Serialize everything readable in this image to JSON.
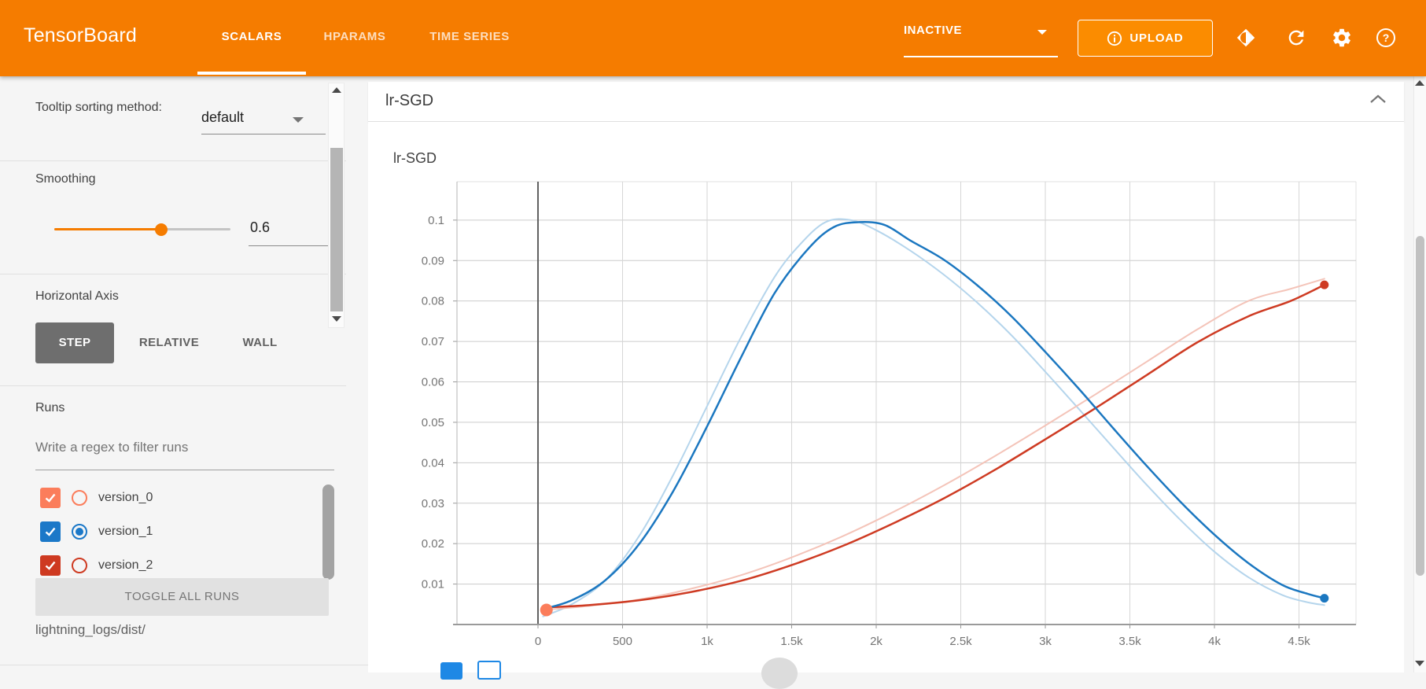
{
  "header": {
    "logo": "TensorBoard",
    "tabs": [
      {
        "label": "SCALARS",
        "active": true
      },
      {
        "label": "HPARAMS",
        "active": false
      },
      {
        "label": "TIME SERIES",
        "active": false
      }
    ],
    "experiment_status": "INACTIVE",
    "upload_label": "UPLOAD",
    "icons": [
      "info-icon",
      "brightness-icon",
      "refresh-icon",
      "settings-icon",
      "help-icon"
    ],
    "accent_color": "#F57C00"
  },
  "sidebar": {
    "tooltip_sorting": {
      "label": "Tooltip sorting method:",
      "value": "default"
    },
    "smoothing": {
      "label": "Smoothing",
      "value": "0.6",
      "fraction": 0.6
    },
    "horizontal_axis": {
      "label": "Horizontal Axis",
      "options": [
        "STEP",
        "RELATIVE",
        "WALL"
      ],
      "active": "STEP"
    },
    "runs": {
      "label": "Runs",
      "filter_placeholder": "Write a regex to filter runs",
      "items": [
        {
          "name": "version_0",
          "color": "#FB7D5B",
          "checked": true,
          "radio_selected": false
        },
        {
          "name": "version_1",
          "color": "#1B78C8",
          "checked": true,
          "radio_selected": true
        },
        {
          "name": "version_2",
          "color": "#CE3A21",
          "checked": true,
          "radio_selected": false
        }
      ],
      "toggle_all_label": "TOGGLE ALL RUNS",
      "path_label": "lightning_logs/dist/"
    }
  },
  "main": {
    "category_title": "lr-SGD",
    "collapse_icon": "chevron-up-icon"
  },
  "chart_data": {
    "type": "line",
    "title": "lr-SGD",
    "xlabel": "",
    "ylabel": "",
    "xlim": [
      -479,
      4837
    ],
    "ylim": [
      0,
      0.1095
    ],
    "grid": true,
    "legend_position": "none",
    "x_ticks": [
      {
        "value": 0,
        "label": "0"
      },
      {
        "value": 500,
        "label": "500"
      },
      {
        "value": 1000,
        "label": "1k"
      },
      {
        "value": 1500,
        "label": "1.5k"
      },
      {
        "value": 2000,
        "label": "2k"
      },
      {
        "value": 2500,
        "label": "2.5k"
      },
      {
        "value": 3000,
        "label": "3k"
      },
      {
        "value": 3500,
        "label": "3.5k"
      },
      {
        "value": 4000,
        "label": "4k"
      },
      {
        "value": 4500,
        "label": "4.5k"
      }
    ],
    "y_ticks": [
      {
        "value": 0.01,
        "label": "0.01"
      },
      {
        "value": 0.02,
        "label": "0.02"
      },
      {
        "value": 0.03,
        "label": "0.03"
      },
      {
        "value": 0.04,
        "label": "0.04"
      },
      {
        "value": 0.05,
        "label": "0.05"
      },
      {
        "value": 0.06,
        "label": "0.06"
      },
      {
        "value": 0.07,
        "label": "0.07"
      },
      {
        "value": 0.08,
        "label": "0.08"
      },
      {
        "value": 0.09,
        "label": "0.09"
      },
      {
        "value": 0.1,
        "label": "0.1"
      }
    ],
    "zero_line_x": 0,
    "series": [
      {
        "name": "version_1 (unsmoothed)",
        "color": "#B5D5EC",
        "width": 2,
        "points": [
          [
            30,
            0.002
          ],
          [
            200,
            0.005
          ],
          [
            400,
            0.011
          ],
          [
            600,
            0.022
          ],
          [
            800,
            0.037
          ],
          [
            1000,
            0.054
          ],
          [
            1200,
            0.071
          ],
          [
            1400,
            0.086
          ],
          [
            1550,
            0.094
          ],
          [
            1700,
            0.0995
          ],
          [
            1850,
            0.1
          ],
          [
            2000,
            0.0975
          ],
          [
            2200,
            0.0925
          ],
          [
            2400,
            0.0865
          ],
          [
            2600,
            0.0795
          ],
          [
            2800,
            0.0715
          ],
          [
            3000,
            0.0625
          ],
          [
            3200,
            0.0532
          ],
          [
            3400,
            0.0438
          ],
          [
            3600,
            0.0345
          ],
          [
            3800,
            0.0258
          ],
          [
            4000,
            0.018
          ],
          [
            4200,
            0.0117
          ],
          [
            4400,
            0.0073
          ],
          [
            4550,
            0.0055
          ],
          [
            4650,
            0.0048
          ]
        ]
      },
      {
        "name": "version_2 (unsmoothed)",
        "color": "#F4C4B9",
        "width": 2,
        "points": [
          [
            30,
            0.0036
          ],
          [
            300,
            0.0046
          ],
          [
            600,
            0.0062
          ],
          [
            900,
            0.0088
          ],
          [
            1200,
            0.0122
          ],
          [
            1500,
            0.0166
          ],
          [
            1800,
            0.0218
          ],
          [
            2100,
            0.0278
          ],
          [
            2400,
            0.0344
          ],
          [
            2700,
            0.0416
          ],
          [
            3000,
            0.0492
          ],
          [
            3300,
            0.057
          ],
          [
            3600,
            0.065
          ],
          [
            3900,
            0.073
          ],
          [
            4200,
            0.08
          ],
          [
            4450,
            0.083
          ],
          [
            4650,
            0.0855
          ]
        ]
      },
      {
        "name": "version_2",
        "color": "#CE3B23",
        "width": 2.5,
        "points": [
          [
            30,
            0.0042
          ],
          [
            300,
            0.0048
          ],
          [
            600,
            0.006
          ],
          [
            900,
            0.008
          ],
          [
            1200,
            0.0108
          ],
          [
            1500,
            0.0147
          ],
          [
            1800,
            0.0194
          ],
          [
            2100,
            0.025
          ],
          [
            2400,
            0.0312
          ],
          [
            2700,
            0.0382
          ],
          [
            3000,
            0.0458
          ],
          [
            3300,
            0.0536
          ],
          [
            3600,
            0.0617
          ],
          [
            3900,
            0.0698
          ],
          [
            4200,
            0.0762
          ],
          [
            4450,
            0.08
          ],
          [
            4650,
            0.084
          ]
        ]
      },
      {
        "name": "version_1",
        "color": "#1B77C0",
        "width": 2.5,
        "points": [
          [
            30,
            0.0038
          ],
          [
            200,
            0.006
          ],
          [
            400,
            0.011
          ],
          [
            600,
            0.02
          ],
          [
            800,
            0.033
          ],
          [
            1000,
            0.049
          ],
          [
            1200,
            0.066
          ],
          [
            1400,
            0.082
          ],
          [
            1600,
            0.093
          ],
          [
            1750,
            0.0983
          ],
          [
            1900,
            0.0995
          ],
          [
            2050,
            0.0988
          ],
          [
            2200,
            0.095
          ],
          [
            2400,
            0.0902
          ],
          [
            2600,
            0.0838
          ],
          [
            2800,
            0.0762
          ],
          [
            3000,
            0.0674
          ],
          [
            3200,
            0.0582
          ],
          [
            3400,
            0.0486
          ],
          [
            3600,
            0.0392
          ],
          [
            3800,
            0.0303
          ],
          [
            4000,
            0.0222
          ],
          [
            4200,
            0.0152
          ],
          [
            4400,
            0.0098
          ],
          [
            4550,
            0.0076
          ],
          [
            4650,
            0.0065
          ]
        ]
      }
    ],
    "markers": [
      {
        "run": "version_0",
        "x": 50,
        "y": 0.0036,
        "color": "#FB7D5B",
        "r": 8
      },
      {
        "run": "version_2",
        "x": 4650,
        "y": 0.084,
        "color": "#CE3B23",
        "r": 5.5
      },
      {
        "run": "version_1",
        "x": 4650,
        "y": 0.0065,
        "color": "#1B77C0",
        "r": 5.5
      }
    ]
  }
}
